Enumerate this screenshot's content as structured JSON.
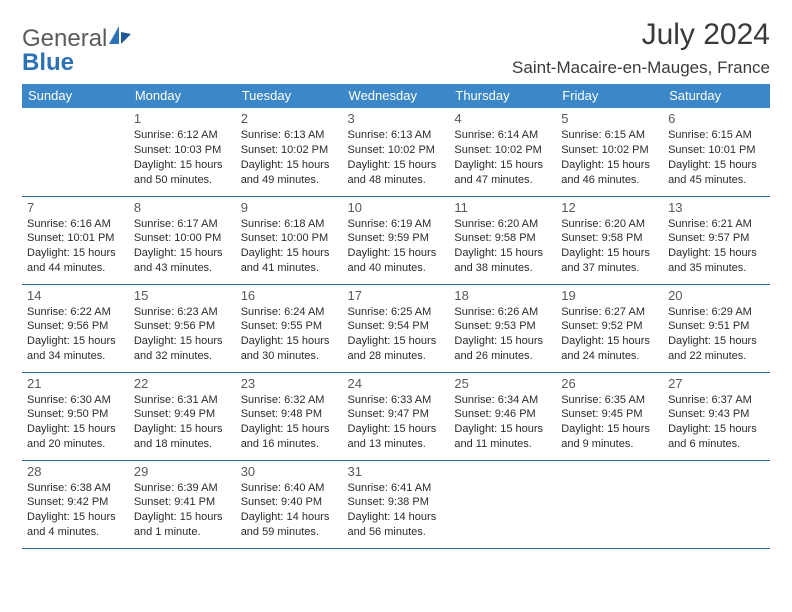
{
  "brand": {
    "part1": "General",
    "part2": "Blue"
  },
  "title": "July 2024",
  "location": "Saint-Macaire-en-Mauges, France",
  "header_bg": "#3b87c8",
  "row_border": "#2d6aa3",
  "day_headers": [
    "Sunday",
    "Monday",
    "Tuesday",
    "Wednesday",
    "Thursday",
    "Friday",
    "Saturday"
  ],
  "grid_start_offset": 1,
  "days": [
    {
      "n": 1,
      "sunrise": "6:12 AM",
      "sunset": "10:03 PM",
      "daylight": "15 hours and 50 minutes."
    },
    {
      "n": 2,
      "sunrise": "6:13 AM",
      "sunset": "10:02 PM",
      "daylight": "15 hours and 49 minutes."
    },
    {
      "n": 3,
      "sunrise": "6:13 AM",
      "sunset": "10:02 PM",
      "daylight": "15 hours and 48 minutes."
    },
    {
      "n": 4,
      "sunrise": "6:14 AM",
      "sunset": "10:02 PM",
      "daylight": "15 hours and 47 minutes."
    },
    {
      "n": 5,
      "sunrise": "6:15 AM",
      "sunset": "10:02 PM",
      "daylight": "15 hours and 46 minutes."
    },
    {
      "n": 6,
      "sunrise": "6:15 AM",
      "sunset": "10:01 PM",
      "daylight": "15 hours and 45 minutes."
    },
    {
      "n": 7,
      "sunrise": "6:16 AM",
      "sunset": "10:01 PM",
      "daylight": "15 hours and 44 minutes."
    },
    {
      "n": 8,
      "sunrise": "6:17 AM",
      "sunset": "10:00 PM",
      "daylight": "15 hours and 43 minutes."
    },
    {
      "n": 9,
      "sunrise": "6:18 AM",
      "sunset": "10:00 PM",
      "daylight": "15 hours and 41 minutes."
    },
    {
      "n": 10,
      "sunrise": "6:19 AM",
      "sunset": "9:59 PM",
      "daylight": "15 hours and 40 minutes."
    },
    {
      "n": 11,
      "sunrise": "6:20 AM",
      "sunset": "9:58 PM",
      "daylight": "15 hours and 38 minutes."
    },
    {
      "n": 12,
      "sunrise": "6:20 AM",
      "sunset": "9:58 PM",
      "daylight": "15 hours and 37 minutes."
    },
    {
      "n": 13,
      "sunrise": "6:21 AM",
      "sunset": "9:57 PM",
      "daylight": "15 hours and 35 minutes."
    },
    {
      "n": 14,
      "sunrise": "6:22 AM",
      "sunset": "9:56 PM",
      "daylight": "15 hours and 34 minutes."
    },
    {
      "n": 15,
      "sunrise": "6:23 AM",
      "sunset": "9:56 PM",
      "daylight": "15 hours and 32 minutes."
    },
    {
      "n": 16,
      "sunrise": "6:24 AM",
      "sunset": "9:55 PM",
      "daylight": "15 hours and 30 minutes."
    },
    {
      "n": 17,
      "sunrise": "6:25 AM",
      "sunset": "9:54 PM",
      "daylight": "15 hours and 28 minutes."
    },
    {
      "n": 18,
      "sunrise": "6:26 AM",
      "sunset": "9:53 PM",
      "daylight": "15 hours and 26 minutes."
    },
    {
      "n": 19,
      "sunrise": "6:27 AM",
      "sunset": "9:52 PM",
      "daylight": "15 hours and 24 minutes."
    },
    {
      "n": 20,
      "sunrise": "6:29 AM",
      "sunset": "9:51 PM",
      "daylight": "15 hours and 22 minutes."
    },
    {
      "n": 21,
      "sunrise": "6:30 AM",
      "sunset": "9:50 PM",
      "daylight": "15 hours and 20 minutes."
    },
    {
      "n": 22,
      "sunrise": "6:31 AM",
      "sunset": "9:49 PM",
      "daylight": "15 hours and 18 minutes."
    },
    {
      "n": 23,
      "sunrise": "6:32 AM",
      "sunset": "9:48 PM",
      "daylight": "15 hours and 16 minutes."
    },
    {
      "n": 24,
      "sunrise": "6:33 AM",
      "sunset": "9:47 PM",
      "daylight": "15 hours and 13 minutes."
    },
    {
      "n": 25,
      "sunrise": "6:34 AM",
      "sunset": "9:46 PM",
      "daylight": "15 hours and 11 minutes."
    },
    {
      "n": 26,
      "sunrise": "6:35 AM",
      "sunset": "9:45 PM",
      "daylight": "15 hours and 9 minutes."
    },
    {
      "n": 27,
      "sunrise": "6:37 AM",
      "sunset": "9:43 PM",
      "daylight": "15 hours and 6 minutes."
    },
    {
      "n": 28,
      "sunrise": "6:38 AM",
      "sunset": "9:42 PM",
      "daylight": "15 hours and 4 minutes."
    },
    {
      "n": 29,
      "sunrise": "6:39 AM",
      "sunset": "9:41 PM",
      "daylight": "15 hours and 1 minute."
    },
    {
      "n": 30,
      "sunrise": "6:40 AM",
      "sunset": "9:40 PM",
      "daylight": "14 hours and 59 minutes."
    },
    {
      "n": 31,
      "sunrise": "6:41 AM",
      "sunset": "9:38 PM",
      "daylight": "14 hours and 56 minutes."
    }
  ],
  "labels": {
    "sunrise_prefix": "Sunrise: ",
    "sunset_prefix": "Sunset: ",
    "daylight_prefix": "Daylight: "
  },
  "fonts": {
    "title_size": 30,
    "location_size": 17,
    "header_size": 13,
    "daynum_size": 13,
    "cell_size": 11
  }
}
